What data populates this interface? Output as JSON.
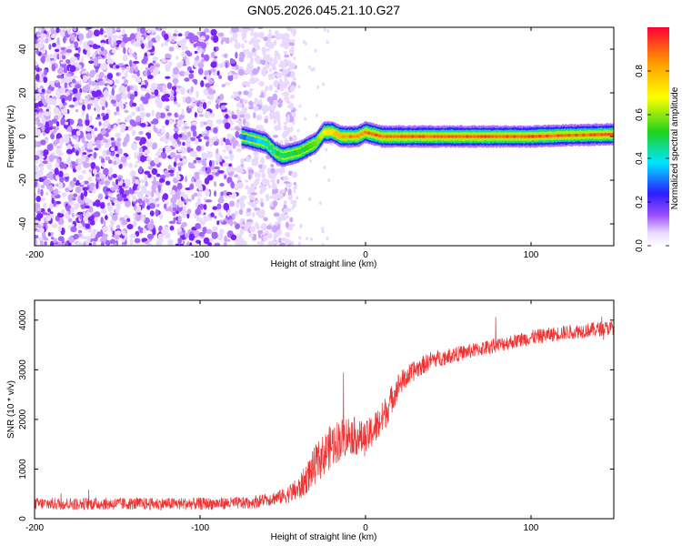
{
  "title": "GN05.2026.045.21.10.G27",
  "chart_data": [
    {
      "type": "heatmap",
      "name": "spectrogram",
      "xlabel": "Height of straight line (km)",
      "ylabel": "Frequency (Hz)",
      "xlim": [
        -200,
        150
      ],
      "ylim": [
        -50,
        50
      ],
      "xticks": [
        -200,
        -100,
        0,
        100
      ],
      "yticks": [
        -40,
        -20,
        0,
        20,
        40
      ],
      "colorbar": {
        "label": "Normalized spectral amplitude",
        "range": [
          0,
          1
        ],
        "ticks": [
          0.0,
          0.2,
          0.4,
          0.6,
          0.8
        ],
        "colors": [
          "#ffffff",
          "#e8d8ff",
          "#9a4dff",
          "#2b1cff",
          "#00e5ff",
          "#1fd21f",
          "#ffff00",
          "#ff9900",
          "#ff0033"
        ]
      },
      "noise_region": {
        "x_from": -200,
        "x_to": -50,
        "freq_from": -50,
        "freq_to": 50,
        "amplitude": 0.15
      },
      "signal_track": {
        "heights": [
          -75,
          -70,
          -65,
          -60,
          -55,
          -50,
          -45,
          -40,
          -35,
          -30,
          -25,
          -20,
          -15,
          -10,
          -5,
          0,
          5,
          10,
          20,
          40,
          60,
          80,
          100,
          120,
          150
        ],
        "freqs": [
          0,
          -1,
          -2,
          -3,
          -7,
          -9,
          -8,
          -7,
          -5,
          -3,
          2,
          2,
          0,
          0,
          0,
          2,
          1,
          0,
          0,
          0,
          0,
          0,
          0,
          0.5,
          1
        ],
        "amplitudes": [
          0.3,
          0.35,
          0.35,
          0.4,
          0.45,
          0.5,
          0.5,
          0.5,
          0.55,
          0.6,
          0.7,
          0.75,
          0.8,
          0.85,
          0.85,
          0.9,
          0.9,
          0.9,
          0.9,
          0.9,
          0.9,
          0.9,
          0.9,
          0.9,
          0.9
        ]
      }
    },
    {
      "type": "line",
      "name": "snr",
      "xlabel": "Height of straight line (km)",
      "ylabel": "SNR (10 * v/v)",
      "xlim": [
        -200,
        150
      ],
      "ylim": [
        0,
        4400
      ],
      "xticks": [
        -200,
        -100,
        0,
        100
      ],
      "yticks": [
        0,
        1000,
        2000,
        3000,
        4000
      ],
      "color": "#ee3333",
      "series": [
        {
          "name": "SNR",
          "x": [
            -200,
            -150,
            -100,
            -70,
            -50,
            -40,
            -30,
            -20,
            -10,
            0,
            10,
            20,
            30,
            40,
            60,
            80,
            100,
            120,
            150
          ],
          "y": [
            300,
            300,
            300,
            320,
            450,
            600,
            1100,
            1500,
            1700,
            1600,
            2000,
            2700,
            3000,
            3200,
            3350,
            3500,
            3650,
            3750,
            3850
          ],
          "spread": [
            250,
            250,
            250,
            250,
            300,
            500,
            800,
            900,
            800,
            700,
            700,
            500,
            400,
            350,
            300,
            300,
            300,
            300,
            300
          ]
        }
      ]
    }
  ]
}
